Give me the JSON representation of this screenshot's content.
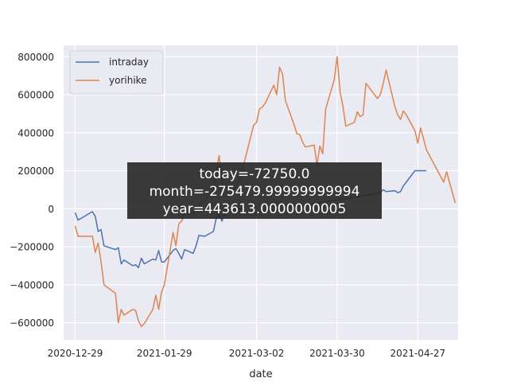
{
  "chart_data": {
    "type": "line",
    "xlabel": "date",
    "ylabel": "",
    "xlim": [
      "2020-12-25",
      "2021-05-11"
    ],
    "ylim": [
      -690000,
      860000
    ],
    "x_ticks": [
      "2020-12-29",
      "2021-01-29",
      "2021-03-02",
      "2021-03-30",
      "2021-04-27"
    ],
    "y_ticks": [
      -600000,
      -400000,
      -200000,
      0,
      200000,
      400000,
      600000,
      800000
    ],
    "y_tick_labels": [
      "−600000",
      "−400000",
      "−200000",
      "0",
      "200000",
      "400000",
      "600000",
      "800000"
    ],
    "grid": true,
    "legend": "top-left",
    "series": [
      {
        "name": "intraday",
        "color": "#4c72b0",
        "x": [
          "2020-12-29",
          "2020-12-30",
          "2021-01-04",
          "2021-01-05",
          "2021-01-06",
          "2021-01-07",
          "2021-01-08",
          "2021-01-12",
          "2021-01-13",
          "2021-01-14",
          "2021-01-15",
          "2021-01-18",
          "2021-01-19",
          "2021-01-20",
          "2021-01-21",
          "2021-01-22",
          "2021-01-25",
          "2021-01-26",
          "2021-01-27",
          "2021-01-28",
          "2021-01-29",
          "2021-02-01",
          "2021-02-02",
          "2021-02-03",
          "2021-02-04",
          "2021-02-05",
          "2021-02-08",
          "2021-02-09",
          "2021-02-10",
          "2021-02-12",
          "2021-02-15",
          "2021-02-16",
          "2021-02-17",
          "2021-02-18",
          "2021-02-19",
          "2021-02-22",
          "2021-02-24",
          "2021-02-25",
          "2021-02-26",
          "2021-03-01",
          "2021-03-02",
          "2021-04-13",
          "2021-04-14",
          "2021-04-15",
          "2021-04-16",
          "2021-04-19",
          "2021-04-20",
          "2021-04-21",
          "2021-04-22",
          "2021-04-23",
          "2021-04-26",
          "2021-04-27",
          "2021-04-28",
          "2021-04-30"
        ],
        "values": [
          -20000,
          -60000,
          -15000,
          -40000,
          -120000,
          -110000,
          -195000,
          -215000,
          -205000,
          -290000,
          -270000,
          -300000,
          -295000,
          -310000,
          -260000,
          -290000,
          -265000,
          -270000,
          -220000,
          -280000,
          -280000,
          -220000,
          -210000,
          -235000,
          -265000,
          -215000,
          -235000,
          -195000,
          -140000,
          -145000,
          -120000,
          -50000,
          -30000,
          -65000,
          -20000,
          -10000,
          0,
          0,
          -20000,
          -20000,
          -20000,
          80000,
          85000,
          100000,
          90000,
          95000,
          85000,
          90000,
          120000,
          140000,
          200000,
          200000,
          200000,
          200000
        ]
      },
      {
        "name": "yorihike",
        "color": "#dd8452",
        "x": [
          "2020-12-29",
          "2020-12-30",
          "2021-01-04",
          "2021-01-05",
          "2021-01-06",
          "2021-01-07",
          "2021-01-08",
          "2021-01-12",
          "2021-01-13",
          "2021-01-14",
          "2021-01-15",
          "2021-01-18",
          "2021-01-19",
          "2021-01-20",
          "2021-01-21",
          "2021-01-22",
          "2021-01-25",
          "2021-01-26",
          "2021-01-27",
          "2021-01-28",
          "2021-01-29",
          "2021-02-01",
          "2021-02-02",
          "2021-02-03",
          "2021-02-04",
          "2021-02-05",
          "2021-02-08",
          "2021-02-09",
          "2021-02-10",
          "2021-02-12",
          "2021-02-15",
          "2021-02-16",
          "2021-02-17",
          "2021-02-18",
          "2021-02-19",
          "2021-02-22",
          "2021-02-24",
          "2021-02-25",
          "2021-02-26",
          "2021-03-01",
          "2021-03-02",
          "2021-03-03",
          "2021-03-04",
          "2021-03-05",
          "2021-03-08",
          "2021-03-09",
          "2021-03-10",
          "2021-03-11",
          "2021-03-12",
          "2021-03-15",
          "2021-03-16",
          "2021-03-17",
          "2021-03-18",
          "2021-03-19",
          "2021-03-22",
          "2021-03-23",
          "2021-03-24",
          "2021-03-25",
          "2021-03-26",
          "2021-03-29",
          "2021-03-30",
          "2021-03-31",
          "2021-04-01",
          "2021-04-02",
          "2021-04-05",
          "2021-04-06",
          "2021-04-07",
          "2021-04-08",
          "2021-04-09",
          "2021-04-12",
          "2021-04-13",
          "2021-04-14",
          "2021-04-15",
          "2021-04-16",
          "2021-04-19",
          "2021-04-20",
          "2021-04-21",
          "2021-04-22",
          "2021-04-23",
          "2021-04-26",
          "2021-04-27",
          "2021-04-28",
          "2021-04-30",
          "2021-05-06",
          "2021-05-07",
          "2021-05-10"
        ],
        "values": [
          -90000,
          -145000,
          -145000,
          -230000,
          -180000,
          -280000,
          -400000,
          -445000,
          -600000,
          -530000,
          -560000,
          -530000,
          -535000,
          -590000,
          -620000,
          -605000,
          -530000,
          -455000,
          -530000,
          -440000,
          -400000,
          -125000,
          -195000,
          -80000,
          -65000,
          -30000,
          -20000,
          -10000,
          20000,
          40000,
          100000,
          200000,
          280000,
          160000,
          120000,
          100000,
          150000,
          200000,
          260000,
          440000,
          455000,
          525000,
          535000,
          555000,
          650000,
          600000,
          745000,
          710000,
          570000,
          445000,
          395000,
          390000,
          350000,
          325000,
          335000,
          230000,
          330000,
          290000,
          525000,
          680000,
          800000,
          615000,
          540000,
          435000,
          455000,
          510000,
          485000,
          495000,
          660000,
          600000,
          580000,
          600000,
          660000,
          730000,
          540000,
          495000,
          470000,
          515000,
          495000,
          410000,
          345000,
          425000,
          310000,
          140000,
          195000,
          30000
        ]
      }
    ]
  },
  "annotation": {
    "lines": [
      "today=-72750.0",
      "month=-275479.99999999994",
      "year=443613.0000000005"
    ]
  }
}
